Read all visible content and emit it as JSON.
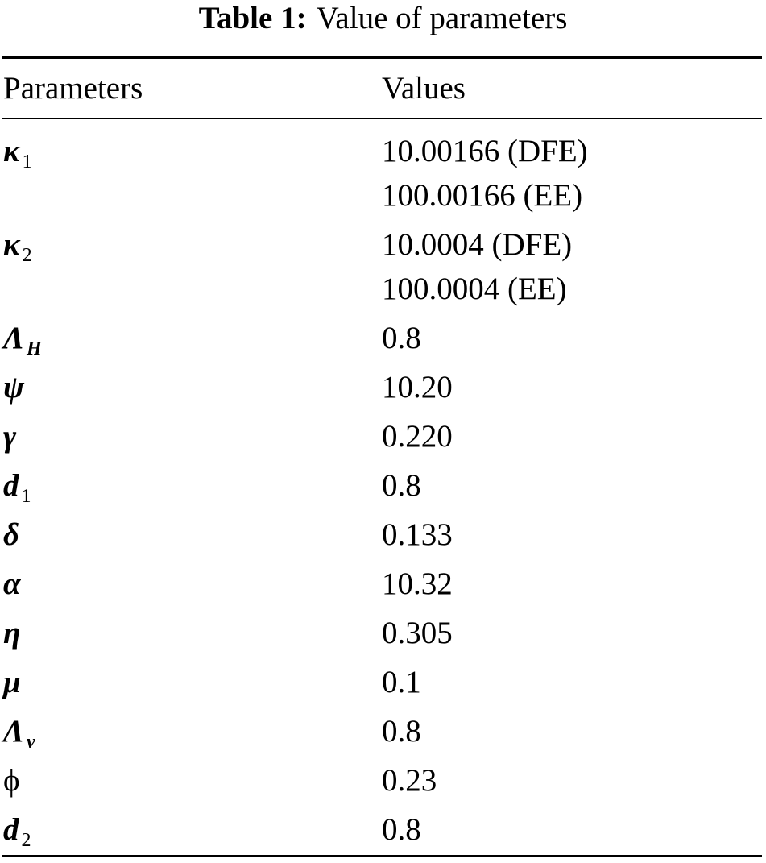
{
  "caption": {
    "label": "Table 1:",
    "text": "Value of parameters"
  },
  "header": {
    "col1": "Parameters",
    "col2": "Values"
  },
  "rows": [
    {
      "symbol": "κ",
      "sub": "1",
      "sub_style": "upright",
      "values": [
        "10.00166 (DFE)",
        "100.00166 (EE)"
      ]
    },
    {
      "symbol": "κ",
      "sub": "2",
      "sub_style": "upright",
      "values": [
        "10.0004 (DFE)",
        "100.0004 (EE)"
      ]
    },
    {
      "symbol": "Λ",
      "sub": "H",
      "sub_style": "italic",
      "values": [
        "0.8"
      ]
    },
    {
      "symbol": "ψ",
      "sub": "",
      "values": [
        "10.20"
      ]
    },
    {
      "symbol": "γ",
      "sub": "",
      "values": [
        "0.220"
      ]
    },
    {
      "symbol": "d",
      "sub": "1",
      "sub_style": "upright",
      "values": [
        "0.8"
      ]
    },
    {
      "symbol": "δ",
      "sub": "",
      "values": [
        "0.133"
      ]
    },
    {
      "symbol": "α",
      "sub": "",
      "values": [
        "10.32"
      ]
    },
    {
      "symbol": "η",
      "sub": "",
      "values": [
        "0.305"
      ]
    },
    {
      "symbol": "μ",
      "sub": "",
      "values": [
        "0.1"
      ]
    },
    {
      "symbol": "Λ",
      "sub": "v",
      "sub_style": "italic",
      "values": [
        "0.8"
      ]
    },
    {
      "symbol": "ϕ",
      "sub": "",
      "sub_style": "upright-symbol",
      "values": [
        "0.23"
      ]
    },
    {
      "symbol": "d",
      "sub": "2",
      "sub_style": "upright",
      "values": [
        "0.8"
      ]
    }
  ]
}
